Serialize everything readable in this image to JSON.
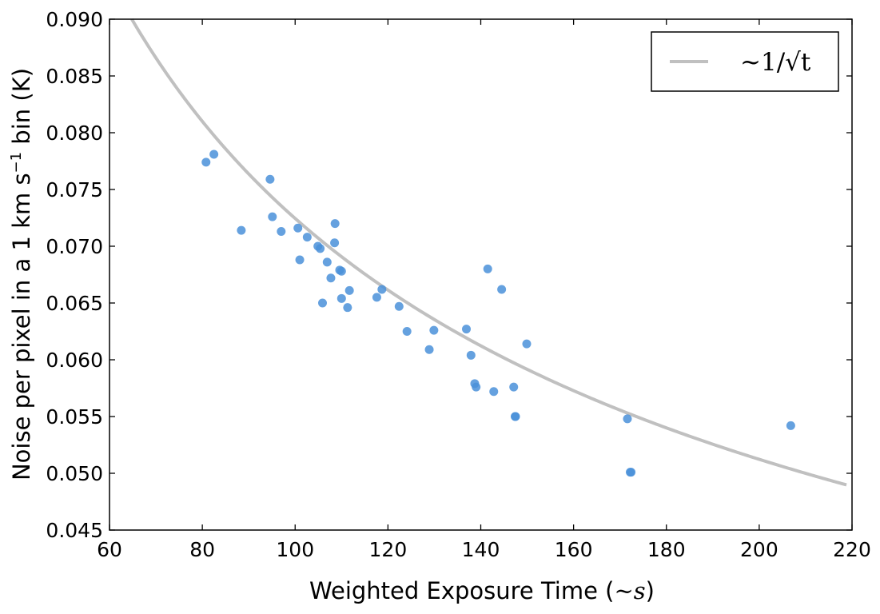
{
  "chart_data": {
    "type": "scatter",
    "title": "",
    "xlabel": "Weighted Exposure Time (",
    "xlabel_math": "~s",
    "xlabel_close": ")",
    "ylabel": "Noise per pixel in a 1 km s",
    "ylabel_sup": "−1",
    "ylabel_tail": " bin (K)",
    "xlim": [
      60,
      220
    ],
    "ylim": [
      0.045,
      0.09
    ],
    "xticks": [
      60,
      80,
      100,
      120,
      140,
      160,
      180,
      200,
      220
    ],
    "yticks": [
      0.045,
      0.05,
      0.055,
      0.06,
      0.065,
      0.07,
      0.075,
      0.08,
      0.085,
      0.09
    ],
    "ytick_labels": [
      "0.045",
      "0.050",
      "0.055",
      "0.060",
      "0.065",
      "0.070",
      "0.075",
      "0.080",
      "0.085",
      "0.090"
    ],
    "grid": false,
    "legend_position": "top-right",
    "legend_label": "~1/√t",
    "fit_curve": {
      "type": "inverse-sqrt",
      "coefficient": 0.7245,
      "color": "#c0c0c0"
    },
    "point_color": "#4a90d9",
    "points": [
      {
        "x": 80.8,
        "y": 0.0774
      },
      {
        "x": 82.5,
        "y": 0.0781
      },
      {
        "x": 88.4,
        "y": 0.0714
      },
      {
        "x": 94.6,
        "y": 0.0759
      },
      {
        "x": 95.1,
        "y": 0.0726
      },
      {
        "x": 97.0,
        "y": 0.0713
      },
      {
        "x": 100.6,
        "y": 0.0716
      },
      {
        "x": 101.0,
        "y": 0.0688
      },
      {
        "x": 102.6,
        "y": 0.0708
      },
      {
        "x": 104.9,
        "y": 0.07
      },
      {
        "x": 105.4,
        "y": 0.0698
      },
      {
        "x": 105.9,
        "y": 0.065
      },
      {
        "x": 106.9,
        "y": 0.0686
      },
      {
        "x": 107.7,
        "y": 0.0672
      },
      {
        "x": 108.6,
        "y": 0.072
      },
      {
        "x": 108.5,
        "y": 0.0703
      },
      {
        "x": 109.6,
        "y": 0.0679
      },
      {
        "x": 110.0,
        "y": 0.0678
      },
      {
        "x": 110.0,
        "y": 0.0654
      },
      {
        "x": 111.3,
        "y": 0.0646
      },
      {
        "x": 111.7,
        "y": 0.0661
      },
      {
        "x": 117.6,
        "y": 0.0655
      },
      {
        "x": 118.7,
        "y": 0.0662
      },
      {
        "x": 122.4,
        "y": 0.0647
      },
      {
        "x": 124.1,
        "y": 0.0625
      },
      {
        "x": 128.9,
        "y": 0.0609
      },
      {
        "x": 129.9,
        "y": 0.0626
      },
      {
        "x": 136.9,
        "y": 0.0627
      },
      {
        "x": 137.9,
        "y": 0.0604
      },
      {
        "x": 138.7,
        "y": 0.0579
      },
      {
        "x": 139.0,
        "y": 0.0576
      },
      {
        "x": 141.5,
        "y": 0.068
      },
      {
        "x": 142.8,
        "y": 0.0572
      },
      {
        "x": 144.5,
        "y": 0.0662
      },
      {
        "x": 147.1,
        "y": 0.0576
      },
      {
        "x": 147.4,
        "y": 0.055
      },
      {
        "x": 147.5,
        "y": 0.055
      },
      {
        "x": 149.9,
        "y": 0.0614
      },
      {
        "x": 171.6,
        "y": 0.0548
      },
      {
        "x": 172.2,
        "y": 0.0501
      },
      {
        "x": 172.4,
        "y": 0.0501
      },
      {
        "x": 206.8,
        "y": 0.0542
      }
    ]
  }
}
